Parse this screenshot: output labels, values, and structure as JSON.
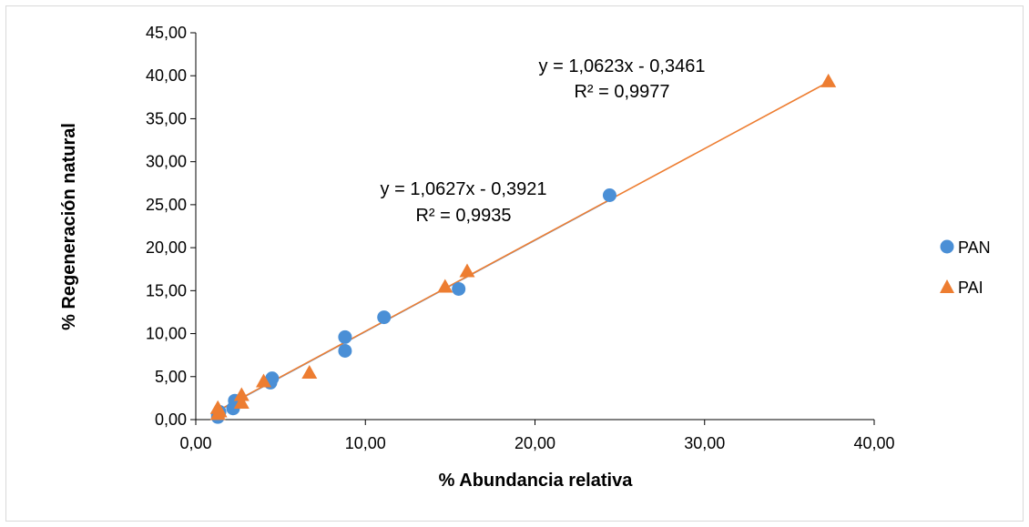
{
  "chart_data": {
    "type": "scatter",
    "xlabel": "% Abundancia relativa",
    "ylabel": "% Regeneración natural",
    "xlim": [
      0,
      40
    ],
    "ylim": [
      0,
      45
    ],
    "x_ticks": [
      "0,00",
      "10,00",
      "20,00",
      "30,00",
      "40,00"
    ],
    "y_ticks": [
      "0,00",
      "5,00",
      "10,00",
      "15,00",
      "20,00",
      "25,00",
      "30,00",
      "35,00",
      "40,00",
      "45,00"
    ],
    "grid": false,
    "legend": "right",
    "series": [
      {
        "name": "PAN",
        "marker": "circle",
        "color": "#4a8fd6",
        "x": [
          1.3,
          1.3,
          1.4,
          2.2,
          2.3,
          4.4,
          4.5,
          8.8,
          8.8,
          11.1,
          15.5,
          24.4
        ],
        "y": [
          0.3,
          0.6,
          0.9,
          1.3,
          2.2,
          4.3,
          4.8,
          8.0,
          9.6,
          11.9,
          15.2,
          26.1
        ],
        "trendline": {
          "slope": 1.0627,
          "intercept": -0.3921
        },
        "equation": "y = 1,0627x - 0,3921",
        "r2": "R² = 0,9935"
      },
      {
        "name": "PAI",
        "marker": "triangle",
        "color": "#ed7d31",
        "x": [
          1.3,
          1.3,
          1.4,
          2.7,
          2.7,
          4.0,
          6.7,
          14.7,
          16.0,
          37.3
        ],
        "y": [
          0.6,
          1.3,
          0.9,
          1.9,
          2.8,
          4.4,
          5.4,
          15.4,
          17.2,
          39.3
        ],
        "trendline": {
          "slope": 1.0623,
          "intercept": -0.3461
        },
        "equation": "y = 1,0623x - 0,3461",
        "r2": "R² = 0,9977"
      }
    ]
  }
}
